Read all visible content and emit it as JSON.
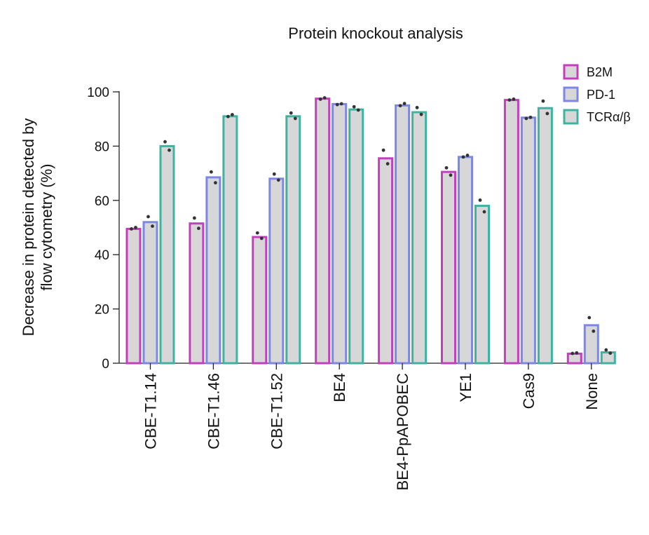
{
  "chart_data": {
    "type": "bar",
    "title": "Protein knockout analysis",
    "ylabel_lines": [
      "Decrease in protein detected by",
      "flow cytometry (%)"
    ],
    "xlabel": "",
    "ylim": [
      0,
      100
    ],
    "yticks": [
      0,
      20,
      40,
      60,
      80,
      100
    ],
    "legend_position": "top-right",
    "categories": [
      "CBE-T1.14",
      "CBE-T1.46",
      "CBE-T1.52",
      "BE4",
      "BE4-PpAPOBEC",
      "YE1",
      "Cas9",
      "None"
    ],
    "series": [
      {
        "name": "B2M",
        "color": "#c43fc0",
        "values": [
          49.5,
          51.5,
          46.5,
          97.5,
          75.5,
          70.5,
          97.0,
          3.5
        ],
        "replicates": [
          [
            49.5,
            50.0
          ],
          [
            53.5,
            49.7
          ],
          [
            48.0,
            46.0
          ],
          [
            97.3,
            97.8
          ],
          [
            78.5,
            73.5
          ],
          [
            72.0,
            69.3
          ],
          [
            97.0,
            97.3
          ],
          [
            3.6,
            3.8
          ]
        ]
      },
      {
        "name": "PD-1",
        "color": "#7d87e8",
        "values": [
          52.0,
          68.5,
          68.0,
          95.5,
          95.0,
          76.0,
          90.5,
          14.0
        ],
        "replicates": [
          [
            54.0,
            50.5
          ],
          [
            70.5,
            66.5
          ],
          [
            69.7,
            67.5
          ],
          [
            95.3,
            95.6
          ],
          [
            94.9,
            95.7
          ],
          [
            76.0,
            76.6
          ],
          [
            90.2,
            90.6
          ],
          [
            16.8,
            11.8
          ]
        ]
      },
      {
        "name": "TCRα/β",
        "color": "#3fb3a2",
        "values": [
          80.0,
          91.0,
          91.0,
          93.5,
          92.5,
          58.0,
          94.0,
          4.0
        ],
        "replicates": [
          [
            81.6,
            78.5
          ],
          [
            90.9,
            91.6
          ],
          [
            92.2,
            90.2
          ],
          [
            94.5,
            93.3
          ],
          [
            94.2,
            91.7
          ],
          [
            60.1,
            55.8
          ],
          [
            96.6,
            92.0
          ],
          [
            4.9,
            3.7
          ]
        ]
      }
    ],
    "bar_fill": "#d7d7d7",
    "point_color": "#333333"
  }
}
